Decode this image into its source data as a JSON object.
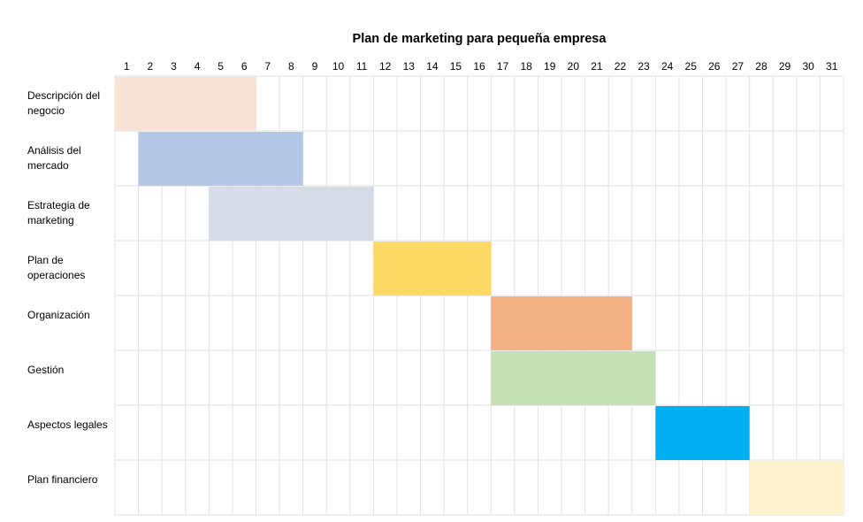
{
  "chart_data": {
    "type": "gantt",
    "title": "Plan de marketing para pequeña empresa",
    "days": [
      "1",
      "2",
      "3",
      "4",
      "5",
      "6",
      "7",
      "8",
      "9",
      "10",
      "11",
      "12",
      "13",
      "14",
      "15",
      "16",
      "17",
      "18",
      "19",
      "20",
      "21",
      "22",
      "23",
      "24",
      "25",
      "26",
      "27",
      "28",
      "29",
      "30",
      "31"
    ],
    "grid": true,
    "tasks": [
      {
        "label": "Descripción del negocio",
        "start": 1,
        "end": 6,
        "color": "#f9e3d7"
      },
      {
        "label": "Análisis del mercado",
        "start": 2,
        "end": 8,
        "color": "#b4c7e7"
      },
      {
        "label": "Estrategia de marketing",
        "start": 5,
        "end": 11,
        "color": "#d6dce5"
      },
      {
        "label": "Plan de operaciones",
        "start": 12,
        "end": 16,
        "color": "#ffd966"
      },
      {
        "label": "Organización",
        "start": 17,
        "end": 22,
        "color": "#f4b183"
      },
      {
        "label": "Gestión",
        "start": 17,
        "end": 23,
        "color": "#c5e0b4"
      },
      {
        "label": "Aspectos legales",
        "start": 24,
        "end": 27,
        "color": "#00b0f0"
      },
      {
        "label": "Plan financiero",
        "start": 28,
        "end": 31,
        "color": "#fff2cc"
      }
    ]
  }
}
